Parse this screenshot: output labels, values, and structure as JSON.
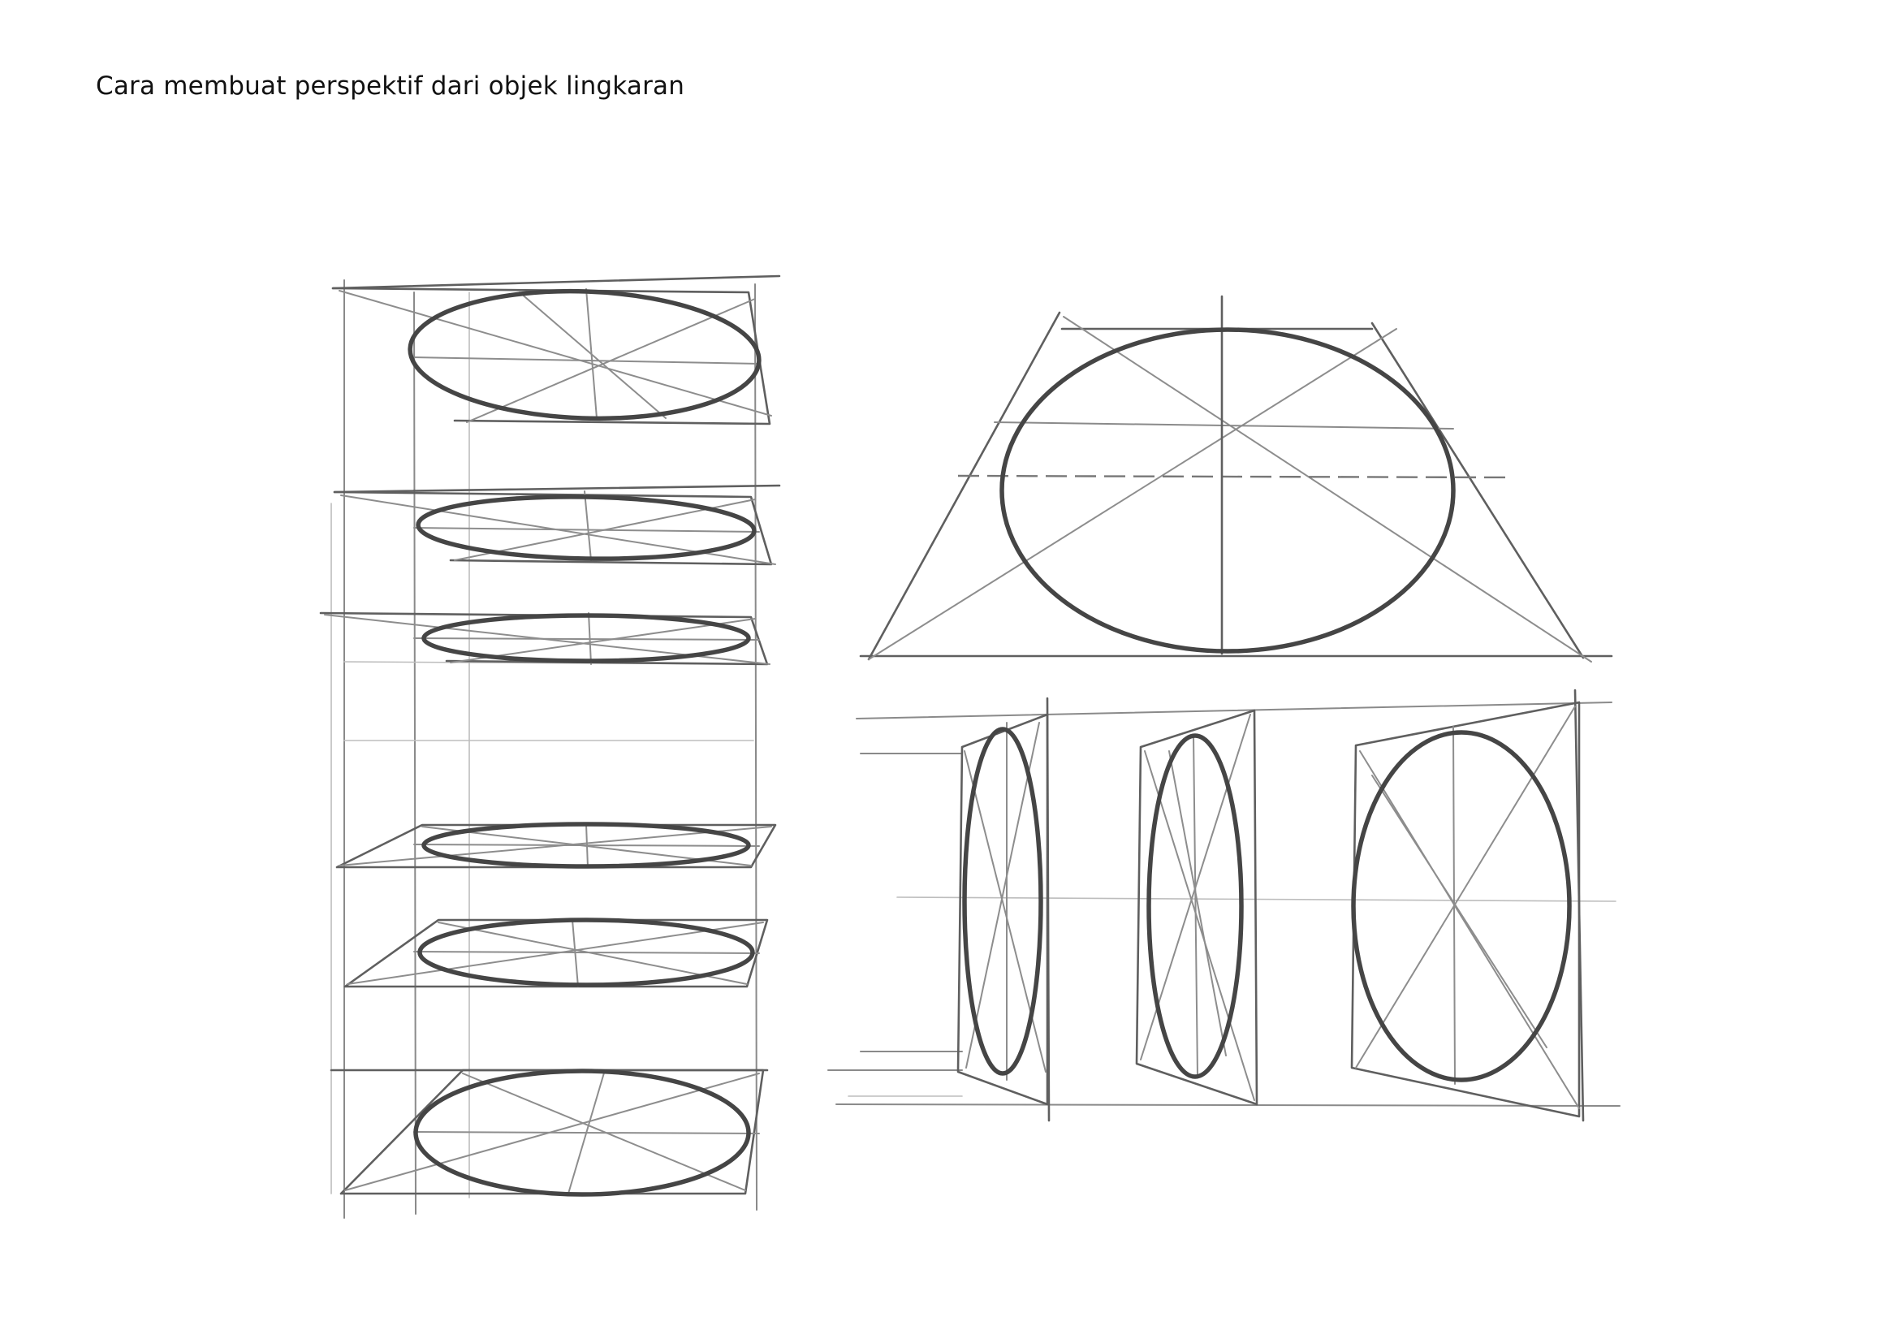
{
  "page": {
    "title": "Cara membuat perspektif dari objek lingkaran"
  },
  "colors": {
    "ink": "#454545",
    "guide": "#8a8a8a",
    "paper": "#ffffff"
  }
}
